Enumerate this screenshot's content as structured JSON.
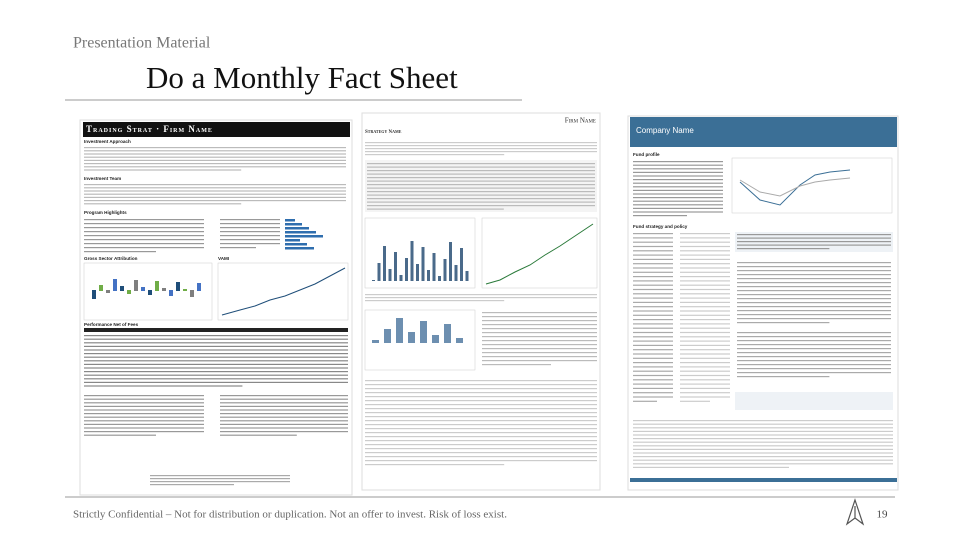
{
  "header": {
    "kicker": "Presentation Material",
    "title": "Do a Monthly Fact Sheet"
  },
  "thumbnails": [
    {
      "title": "Trading Strat · Firm Name",
      "sections": [
        "Investment Approach",
        "Investment Team",
        "Program Highlights",
        "Gross Sector Attribution",
        "VAMI",
        "Performance Net of Fees"
      ]
    },
    {
      "title": "Firm Name",
      "subtitle": "Strategy Name"
    },
    {
      "title": "Company Name",
      "sections": [
        "Fund profile",
        "Fund strategy and policy"
      ]
    }
  ],
  "footer": {
    "text": "Strictly Confidential – Not for distribution or duplication. Not an offer to invest. Risk of loss exist.",
    "page": "19"
  }
}
